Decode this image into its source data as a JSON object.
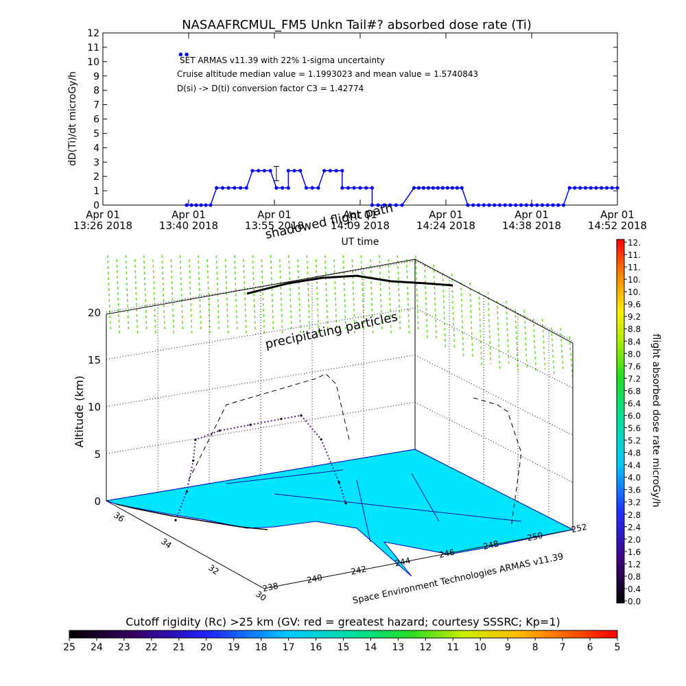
{
  "title": "NASAAFRCMUL_FM5 Unkn Tail#? absorbed dose rate (Ti)",
  "chart_data": [
    {
      "type": "line",
      "title": "NASAAFRCMUL_FM5 Unkn Tail#? absorbed dose rate (Ti)",
      "xlabel": "UT time",
      "ylabel": "dD(Ti)/dt microGy/h",
      "ylim": [
        0,
        12
      ],
      "yticks": [
        "0",
        "1",
        "2",
        "3",
        "4",
        "5",
        "6",
        "7",
        "8",
        "9",
        "10",
        "11",
        "12"
      ],
      "xticks": [
        {
          "top": "Apr 01",
          "bottom": "13:26 2018"
        },
        {
          "top": "Apr 01",
          "bottom": "13:40 2018"
        },
        {
          "top": "Apr 01",
          "bottom": "13:55 2018"
        },
        {
          "top": "Apr 01",
          "bottom": "14:09 2018"
        },
        {
          "top": "Apr 01",
          "bottom": "14:24 2018"
        },
        {
          "top": "Apr 01",
          "bottom": "14:38 2018"
        },
        {
          "top": "Apr 01",
          "bottom": "14:52 2018"
        }
      ],
      "annotations": [
        "SET ARMAS v11.39 with 22% 1-sigma uncertainty",
        "Cruise altitude median value = 1.1993023 and mean value = 1.5740843",
        "D(si) -> D(ti) conversion factor C3 = 1.42774"
      ],
      "series": [
        {
          "color": "#0000ee",
          "segments": [
            {
              "x_start": "13:40",
              "x_end": "13:44",
              "count": 6,
              "y": 0
            },
            {
              "x_start": "13:45",
              "x_end": "13:50",
              "count": 6,
              "y": 1.2
            },
            {
              "x_start": "13:51",
              "x_end": "13:54",
              "count": 4,
              "y": 2.4
            },
            {
              "x_start": "13:55",
              "x_end": "13:57",
              "count": 3,
              "y": 1.2
            },
            {
              "x_start": "13:57",
              "x_end": "13:59",
              "count": 3,
              "y": 2.4
            },
            {
              "x_start": "14:00",
              "x_end": "14:02",
              "count": 3,
              "y": 1.2
            },
            {
              "x_start": "14:03",
              "x_end": "14:06",
              "count": 4,
              "y": 2.4
            },
            {
              "x_start": "14:06",
              "x_end": "14:11",
              "count": 6,
              "y": 1.2
            },
            {
              "x_start": "14:11",
              "x_end": "14:16",
              "count": 6,
              "y": 0
            },
            {
              "x_start": "14:18",
              "x_end": "14:26",
              "count": 11,
              "y": 1.2
            },
            {
              "x_start": "14:27",
              "x_end": "14:43",
              "count": 19,
              "y": 0
            },
            {
              "x_start": "14:44",
              "x_end": "14:52",
              "count": 10,
              "y": 1.2
            }
          ],
          "outliers": [
            {
              "x": "13:39",
              "y": 10.5
            },
            {
              "x": "13:40",
              "y": 10.5
            }
          ],
          "error_bar": {
            "x": "13:55",
            "y": 2.2,
            "low": 1.7,
            "high": 2.7
          }
        }
      ]
    },
    {
      "type": "scatter",
      "zlabel": "Altitude (km)",
      "zticks": [
        "0",
        "5",
        "10",
        "15",
        "20"
      ],
      "zlim": [
        0,
        20
      ],
      "lat_ticks": [
        "36",
        "34",
        "32",
        "30"
      ],
      "lon_ticks": [
        "238",
        "240",
        "242",
        "244",
        "246",
        "248",
        "250",
        "252"
      ],
      "flight_track": [
        {
          "lon": 239.2,
          "lat": 34.6,
          "alt": 0
        },
        {
          "lon": 239.6,
          "lat": 34.5,
          "alt": 3
        },
        {
          "lon": 240.0,
          "lat": 34.6,
          "alt": 6
        },
        {
          "lon": 240.2,
          "lat": 34.7,
          "alt": 8
        },
        {
          "lon": 241.5,
          "lat": 34.9,
          "alt": 8.2
        },
        {
          "lon": 243.0,
          "lat": 35.0,
          "alt": 8.1
        },
        {
          "lon": 244.5,
          "lat": 35.1,
          "alt": 8.0
        },
        {
          "lon": 245.3,
          "lat": 35.0,
          "alt": 8.2
        },
        {
          "lon": 245.8,
          "lat": 34.6,
          "alt": 6
        },
        {
          "lon": 246.1,
          "lat": 34.1,
          "alt": 2
        },
        {
          "lon": 246.2,
          "lat": 33.9,
          "alt": 0
        }
      ],
      "colorbar": {
        "label": "flight absorbed dose rate microGy/h",
        "ticks": [
          "0.0",
          "0.4",
          "0.8",
          "1.2",
          "1.6",
          "2.0",
          "2.4",
          "2.8",
          "3.2",
          "3.6",
          "4.0",
          "4.4",
          "4.8",
          "5.2",
          "5.6",
          "6.0",
          "6.4",
          "6.8",
          "7.2",
          "7.6",
          "8.0",
          "8.4",
          "8.8",
          "9.2",
          "9.6",
          "10.",
          "10.",
          "11.",
          "11.",
          "12."
        ]
      },
      "labels": {
        "shadow": "shadowed flight path",
        "particles": "precipitating particles",
        "credit": "Space Environment Technologies ARMAS v11.39"
      }
    },
    {
      "type": "colorbar",
      "title": "Cutoff rigidity (Rc) >25 km (GV: red = greatest hazard; courtesy SSSRC; Kp=1)",
      "ticks": [
        "25",
        "24",
        "23",
        "22",
        "21",
        "20",
        "19",
        "18",
        "17",
        "16",
        "15",
        "14",
        "13",
        "12",
        "11",
        "10",
        "9",
        "8",
        "7",
        "6",
        "5"
      ]
    }
  ],
  "colors": {
    "series": "#0000ee",
    "ground": "#00e5ff",
    "particles": "#66dd22",
    "track": "#5a1a8c"
  }
}
